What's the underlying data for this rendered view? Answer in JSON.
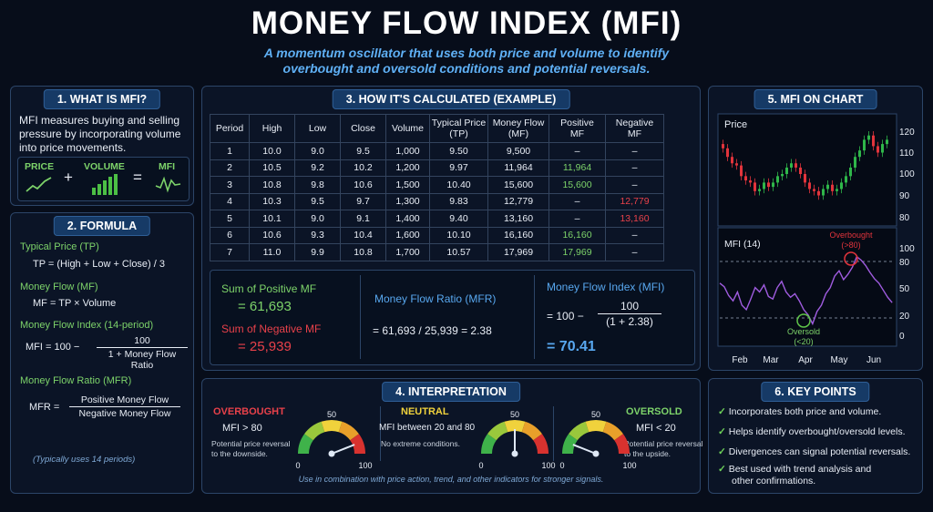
{
  "title": "MONEY FLOW INDEX (MFI)",
  "subtitle_line1": "A momentum oscillator that uses both price and volume to identify",
  "subtitle_line2": "overbought and oversold conditions and potential reversals.",
  "what": {
    "heading": "1. WHAT IS MFI?",
    "text1": "MFI measures buying and selling",
    "text2": "pressure by incorporating volume",
    "text3": "into price movements.",
    "price": "PRICE",
    "plus": "+",
    "volume": "VOLUME",
    "equals": "=",
    "mfi": "MFI"
  },
  "formula": {
    "heading": "2. FORMULA",
    "tp_label": "Typical Price (TP)",
    "tp_formula": "TP = (High + Low + Close) / 3",
    "mf_label": "Money Flow (MF)",
    "mf_formula": "MF = TP × Volume",
    "mfi_label": "Money Flow Index (14-period)",
    "mfi_lhs": "MFI = 100 −",
    "mfi_num": "100",
    "mfi_den": "1 + Money Flow Ratio",
    "mfr_label": "Money Flow Ratio (MFR)",
    "mfr_lhs": "MFR =",
    "mfr_num": "Positive Money Flow",
    "mfr_den": "Negative Money Flow",
    "note": "(Typically uses 14 periods)"
  },
  "calc": {
    "heading": "3. HOW IT'S CALCULATED (EXAMPLE)",
    "headers": [
      [
        "Period",
        ""
      ],
      [
        "High",
        ""
      ],
      [
        "Low",
        ""
      ],
      [
        "Close",
        ""
      ],
      [
        "Volume",
        ""
      ],
      [
        "Typical Price",
        "(TP)"
      ],
      [
        "Money Flow",
        "(MF)"
      ],
      [
        "Positive",
        "MF"
      ],
      [
        "Negative",
        "MF"
      ]
    ],
    "rows": [
      [
        "1",
        "10.0",
        "9.0",
        "9.5",
        "1,000",
        "9.50",
        "9,500",
        "–",
        "–"
      ],
      [
        "2",
        "10.5",
        "9.2",
        "10.2",
        "1,200",
        "9.97",
        "11,964",
        "11,964",
        "–"
      ],
      [
        "3",
        "10.8",
        "9.8",
        "10.6",
        "1,500",
        "10.40",
        "15,600",
        "15,600",
        "–"
      ],
      [
        "4",
        "10.3",
        "9.5",
        "9.7",
        "1,300",
        "9.83",
        "12,779",
        "–",
        "12,779"
      ],
      [
        "5",
        "10.1",
        "9.0",
        "9.1",
        "1,400",
        "9.40",
        "13,160",
        "–",
        "13,160"
      ],
      [
        "6",
        "10.6",
        "9.3",
        "10.4",
        "1,600",
        "10.10",
        "16,160",
        "16,160",
        "–"
      ],
      [
        "7",
        "11.0",
        "9.9",
        "10.8",
        "1,700",
        "10.57",
        "17,969",
        "17,969",
        "–"
      ]
    ],
    "sum_pos_label": "Sum of Positive MF",
    "sum_pos_value": "= 61,693",
    "sum_neg_label": "Sum of Negative MF",
    "sum_neg_value": "= 25,939",
    "mfr_label": "Money Flow Ratio (MFR)",
    "mfr_value": "= 61,693 / 25,939 = 2.38",
    "mfi_label": "Money Flow Index (MFI)",
    "mfi_lhs": "= 100 −",
    "mfi_num": "100",
    "mfi_den": "(1 + 2.38)",
    "mfi_value": "= 70.41"
  },
  "interp": {
    "heading": "4. INTERPRETATION",
    "overbought_title": "OVERBOUGHT",
    "overbought_cond": "MFI > 80",
    "overbought_desc1": "Potential price reversal",
    "overbought_desc2": "to the downside.",
    "neutral_title": "NEUTRAL",
    "neutral_cond": "MFI between 20 and 80",
    "neutral_desc": "No extreme conditions.",
    "oversold_title": "OVERSOLD",
    "oversold_cond": "MFI < 20",
    "oversold_desc1": "Potential price reversal",
    "oversold_desc2": "to the upside.",
    "gauge_min": "0",
    "gauge_mid": "50",
    "gauge_max": "100",
    "gauge_values": [
      88,
      50,
      12
    ],
    "footer": "Use in combination with price action, trend, and other indicators for stronger signals."
  },
  "chart": {
    "heading": "5. MFI ON CHART",
    "price_label": "Price",
    "price_ticks": [
      "120",
      "110",
      "100",
      "90",
      "80"
    ],
    "mfi_label": "MFI (14)",
    "mfi_ticks": [
      "100",
      "80",
      "50",
      "20",
      "0"
    ],
    "overbought_label": "Overbought",
    "overbought_sub": "(>80)",
    "oversold_label": "Oversold",
    "oversold_sub": "(<20)",
    "months": [
      "Feb",
      "Mar",
      "Apr",
      "May",
      "Jun"
    ]
  },
  "keypoints": {
    "heading": "6. KEY POINTS",
    "items": [
      "Incorporates both price and volume.",
      "Helps identify overbought/oversold levels.",
      "Divergences can signal potential reversals.",
      "Best used with trend analysis and",
      "other confirmations."
    ]
  },
  "colors": {
    "green": "#7dd36a",
    "red": "#e8414a",
    "blue": "#58a8f0",
    "purple": "#a05ce0"
  }
}
